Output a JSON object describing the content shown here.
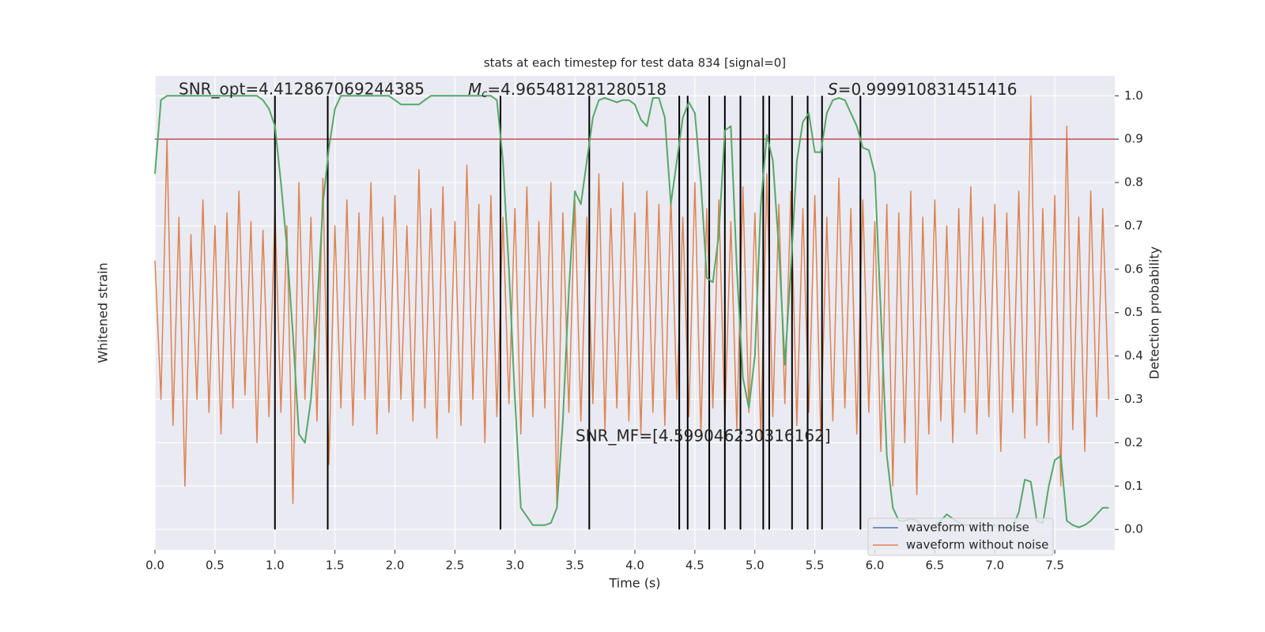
{
  "chart_data": {
    "type": "line",
    "title": "stats at each timestep for test data 834 [signal=0]",
    "xlabel": "Time (s)",
    "ylabel": "Whitened strain",
    "y2label": "Detection probability",
    "annotations": {
      "snr_opt": "SNR_opt=4.412867069244385",
      "mc_symbol": "M",
      "mc_sub": "c",
      "mc_value": "=4.965481281280518",
      "s_symbol": "S",
      "s_value": "=0.999910831451416",
      "snr_mf": "SNR_MF=[4.599046230316162]"
    },
    "xlim": [
      0,
      8
    ],
    "ylim": [
      -0.047,
      1.046
    ],
    "xticks": [
      {
        "value": 0,
        "label": "0.0"
      },
      0.5,
      {
        "value": 1,
        "label": "1.0"
      },
      1.5,
      {
        "value": 2,
        "label": "2.0"
      },
      2.5,
      {
        "value": 3,
        "label": "3.0"
      },
      3.5,
      {
        "value": 4,
        "label": "4.0"
      },
      4.5,
      {
        "value": 5,
        "label": "5.0"
      },
      5.5,
      {
        "value": 6,
        "label": "6.0"
      },
      6.5,
      {
        "value": 7,
        "label": "7.0"
      },
      7.5
    ],
    "yticks": [
      {
        "value": 0,
        "label": "0.0"
      },
      0.1,
      0.2,
      0.3,
      0.4,
      0.5,
      0.6,
      0.7,
      0.8,
      0.9,
      {
        "value": 1,
        "label": "1.0"
      }
    ],
    "grid": true,
    "legend_position": "lower right",
    "legend": [
      {
        "name": "waveform with noise",
        "color": "#4c72b0"
      },
      {
        "name": "waveform without noise",
        "color": "#dd8452"
      }
    ],
    "threshold": {
      "value": 0.9,
      "color": "#c44e52"
    },
    "vlines": {
      "color": "#000000",
      "x": [
        1.0,
        1.44,
        2.88,
        3.62,
        4.37,
        4.44,
        4.62,
        4.75,
        4.88,
        5.07,
        5.12,
        5.31,
        5.44,
        5.56,
        5.88
      ]
    },
    "x": [
      0,
      0.05,
      0.1,
      0.15,
      0.2,
      0.25,
      0.3,
      0.35,
      0.4,
      0.45,
      0.5,
      0.55,
      0.6,
      0.65,
      0.7,
      0.75,
      0.8,
      0.85,
      0.9,
      0.95,
      1,
      1.05,
      1.1,
      1.15,
      1.2,
      1.25,
      1.3,
      1.35,
      1.4,
      1.45,
      1.5,
      1.55,
      1.6,
      1.65,
      1.7,
      1.75,
      1.8,
      1.85,
      1.9,
      1.95,
      2,
      2.05,
      2.1,
      2.15,
      2.2,
      2.25,
      2.3,
      2.35,
      2.4,
      2.45,
      2.5,
      2.55,
      2.6,
      2.65,
      2.7,
      2.75,
      2.8,
      2.85,
      2.9,
      2.95,
      3,
      3.05,
      3.1,
      3.15,
      3.2,
      3.25,
      3.3,
      3.35,
      3.4,
      3.45,
      3.5,
      3.55,
      3.6,
      3.65,
      3.7,
      3.75,
      3.8,
      3.85,
      3.9,
      3.95,
      4,
      4.05,
      4.1,
      4.15,
      4.2,
      4.25,
      4.3,
      4.35,
      4.4,
      4.45,
      4.5,
      4.55,
      4.6,
      4.65,
      4.7,
      4.75,
      4.8,
      4.85,
      4.9,
      4.95,
      5,
      5.05,
      5.1,
      5.15,
      5.2,
      5.25,
      5.3,
      5.35,
      5.4,
      5.45,
      5.5,
      5.55,
      5.6,
      5.65,
      5.7,
      5.75,
      5.8,
      5.85,
      5.9,
      5.95,
      6,
      6.05,
      6.1,
      6.15,
      6.2,
      6.25,
      6.3,
      6.35,
      6.4,
      6.45,
      6.5,
      6.55,
      6.6,
      6.65,
      6.7,
      6.75,
      6.8,
      6.85,
      6.9,
      6.95,
      7,
      7.05,
      7.1,
      7.15,
      7.2,
      7.25,
      7.3,
      7.35,
      7.4,
      7.45,
      7.5,
      7.55,
      7.6,
      7.65,
      7.7,
      7.75,
      7.8,
      7.85,
      7.9,
      7.95
    ],
    "series": [
      {
        "color": "#dd8452",
        "width": 1.5,
        "values": [
          0.62,
          0.3,
          0.9,
          0.24,
          0.72,
          0.1,
          0.68,
          0.3,
          0.76,
          0.27,
          0.7,
          0.22,
          0.73,
          0.28,
          0.78,
          0.31,
          0.71,
          0.2,
          0.69,
          0.26,
          0.74,
          0.27,
          0.7,
          0.06,
          0.8,
          0.3,
          0.72,
          0.25,
          0.81,
          0.15,
          0.7,
          0.28,
          0.76,
          0.24,
          0.73,
          0.3,
          0.8,
          0.22,
          0.72,
          0.27,
          0.77,
          0.3,
          0.7,
          0.25,
          0.83,
          0.28,
          0.74,
          0.21,
          0.79,
          0.27,
          0.71,
          0.24,
          0.84,
          0.3,
          0.75,
          0.2,
          0.77,
          0.26,
          0.72,
          0.29,
          0.74,
          0.22,
          0.79,
          0.26,
          0.71,
          0.28,
          0.8,
          0.05,
          0.73,
          0.27,
          0.76,
          0.25,
          0.72,
          0.29,
          0.82,
          0.23,
          0.74,
          0.28,
          0.8,
          0.25,
          0.73,
          0.22,
          0.78,
          0.27,
          0.75,
          0.24,
          0.77,
          0.3,
          0.72,
          0.26,
          0.8,
          0.22,
          0.74,
          0.28,
          0.76,
          0.25,
          0.71,
          0.23,
          0.79,
          0.27,
          0.73,
          0.21,
          0.82,
          0.26,
          0.75,
          0.29,
          0.78,
          0.24,
          0.74,
          0.27,
          0.77,
          0.22,
          0.72,
          0.25,
          0.81,
          0.28,
          0.74,
          0.22,
          0.76,
          0.27,
          0.71,
          0.18,
          0.75,
          0.1,
          0.73,
          0.2,
          0.78,
          0.08,
          0.72,
          0.22,
          0.76,
          0.25,
          0.7,
          0.2,
          0.74,
          0.27,
          0.79,
          0.22,
          0.72,
          0.26,
          0.75,
          0.18,
          0.73,
          0.27,
          0.78,
          0.21,
          1.0,
          0.24,
          0.74,
          0.2,
          0.77,
          0.1,
          0.93,
          0.23,
          0.72,
          0.18,
          0.78,
          0.26,
          0.74,
          0.3
        ]
      },
      {
        "color": "#55a868",
        "width": 2,
        "values": [
          0.82,
          0.99,
          1.0,
          1.0,
          1.0,
          1.0,
          1.0,
          1.0,
          1.0,
          1.0,
          1.0,
          1.0,
          1.0,
          1.0,
          1.0,
          1.0,
          1.0,
          1.0,
          0.99,
          0.97,
          0.93,
          0.8,
          0.65,
          0.45,
          0.22,
          0.2,
          0.3,
          0.5,
          0.75,
          0.88,
          0.97,
          1.0,
          1.0,
          1.0,
          1.0,
          1.0,
          1.0,
          1.0,
          1.0,
          1.0,
          0.99,
          0.98,
          0.98,
          0.98,
          0.98,
          0.99,
          1.0,
          1.0,
          1.0,
          1.0,
          1.0,
          1.0,
          1.0,
          1.0,
          1.0,
          1.0,
          1.0,
          0.99,
          0.85,
          0.6,
          0.3,
          0.05,
          0.03,
          0.01,
          0.01,
          0.01,
          0.015,
          0.05,
          0.25,
          0.55,
          0.78,
          0.75,
          0.85,
          0.95,
          0.99,
          0.995,
          0.99,
          0.985,
          0.99,
          0.99,
          0.98,
          0.945,
          0.93,
          0.995,
          0.995,
          0.95,
          0.75,
          0.85,
          0.95,
          0.985,
          0.96,
          0.8,
          0.58,
          0.57,
          0.68,
          0.92,
          0.93,
          0.6,
          0.35,
          0.28,
          0.4,
          0.75,
          0.91,
          0.85,
          0.65,
          0.38,
          0.6,
          0.85,
          0.94,
          0.96,
          0.87,
          0.87,
          0.96,
          0.99,
          0.995,
          0.99,
          0.96,
          0.93,
          0.88,
          0.875,
          0.82,
          0.5,
          0.17,
          0.05,
          0.02,
          0.02,
          0.025,
          0.02,
          0.01,
          0.01,
          0.01,
          0.02,
          0.035,
          0.025,
          0.015,
          0.01,
          0.01,
          0.01,
          0.01,
          0.01,
          0.01,
          0.005,
          0.005,
          0.005,
          0.04,
          0.115,
          0.11,
          0.02,
          0.015,
          0.1,
          0.16,
          0.17,
          0.02,
          0.01,
          0.005,
          0.01,
          0.02,
          0.035,
          0.05,
          0.05
        ]
      }
    ]
  }
}
